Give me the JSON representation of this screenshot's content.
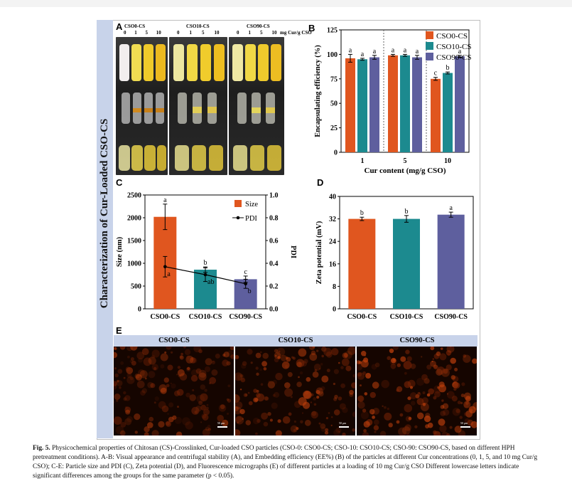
{
  "figure_side_title": "Characterization of Cur-Loaded CSO-CS",
  "panels": {
    "a": "A",
    "b": "B",
    "c": "C",
    "d": "D",
    "e": "E"
  },
  "panel_a": {
    "groups": [
      "CSO0-CS",
      "CSO10-CS",
      "CSO90-CS"
    ],
    "doses": [
      "0",
      "1",
      "5",
      "10"
    ],
    "unit": "mg Cur/g CSO"
  },
  "panel_e": {
    "labels": [
      "CSO0-CS",
      "CSO10-CS",
      "CSO90-CS"
    ],
    "scale_bar": "50 μm"
  },
  "colors": {
    "cso0": "#e0561f",
    "cso10": "#1c8a8f",
    "cso90": "#5e5f9e",
    "band": "#c8d3ea"
  },
  "chart_data": [
    {
      "id": "B",
      "type": "bar",
      "title": "",
      "xlabel": "Cur content (mg/g CSO)",
      "ylabel": "Encapsulating efficiency (%)",
      "ylim": [
        0,
        125
      ],
      "yticks": [
        "0",
        "25",
        "50",
        "75",
        "100",
        "125"
      ],
      "categories": [
        "1",
        "5",
        "10"
      ],
      "legend": [
        "CSO0-CS",
        "CSO10-CS",
        "CSO90-CS"
      ],
      "series": [
        {
          "name": "CSO0-CS",
          "values": [
            96,
            99,
            75
          ],
          "errors": [
            4,
            1,
            1.5
          ],
          "letters": [
            "a",
            "a",
            "c"
          ]
        },
        {
          "name": "CSO10-CS",
          "values": [
            95,
            99,
            81
          ],
          "errors": [
            1,
            1,
            1
          ],
          "letters": [
            "a",
            "a",
            "b"
          ]
        },
        {
          "name": "CSO90-CS",
          "values": [
            97,
            97,
            98
          ],
          "errors": [
            2,
            2,
            1
          ],
          "letters": [
            "a",
            "a",
            "a"
          ]
        }
      ]
    },
    {
      "id": "C",
      "type": "bar",
      "title": "",
      "xlabel": "",
      "ylabel": "Size (nm)",
      "ylabel_right": "PDI",
      "ylim": [
        0,
        2500
      ],
      "ylim_right": [
        0,
        1.0
      ],
      "yticks": [
        "0",
        "500",
        "1000",
        "1500",
        "2000",
        "2500"
      ],
      "yticks_right": [
        "0.0",
        "0.2",
        "0.4",
        "0.6",
        "0.8",
        "1.0"
      ],
      "categories": [
        "CSO0-CS",
        "CSO10-CS",
        "CSO90-CS"
      ],
      "legend": [
        "Size",
        "PDI"
      ],
      "series": [
        {
          "name": "Size",
          "values": [
            2020,
            860,
            650
          ],
          "errors": [
            280,
            60,
            70
          ],
          "letters": [
            "a",
            "b",
            "c"
          ]
        },
        {
          "name": "PDI",
          "values": [
            0.37,
            0.3,
            0.22
          ],
          "errors": [
            0.09,
            0.06,
            0.04
          ],
          "letters": [
            "a",
            "ab",
            "b"
          ]
        }
      ]
    },
    {
      "id": "D",
      "type": "bar",
      "title": "",
      "xlabel": "",
      "ylabel": "Zeta potential (mV)",
      "ylim": [
        0,
        40
      ],
      "yticks": [
        "0",
        "8",
        "16",
        "24",
        "32",
        "40"
      ],
      "categories": [
        "CSO0-CS",
        "CSO10-CS",
        "CSO90-CS"
      ],
      "series": [
        {
          "name": "Zeta potential",
          "values": [
            32,
            32,
            33.5
          ],
          "errors": [
            0.6,
            1.2,
            0.9
          ],
          "letters": [
            "b",
            "b",
            "a"
          ]
        }
      ]
    }
  ],
  "caption": {
    "fig_label": "Fig. 5.",
    "text": " Physicochemical properties of Chitosan (CS)-Crosslinked, Cur-loaded CSO particles (CSO-0: CSO0-CS; CSO-10: CSO10-CS; CSO-90: CSO90-CS, based on different HPH pretreatment conditions). A-B: Visual appearance and centrifugal stability (A), and Embedding efficiency (EE%) (B) of the particles at different Cur concentrations (0, 1, 5, and 10 mg Cur/g CSO); C-E: Particle size and PDI (C), Zeta potential (D), and Fluorescence micrographs (E) of different particles at a loading of 10 mg Cur/g CSO Different lowercase letters indicate significant differences among the groups for the same parameter (p < 0.05)."
  }
}
